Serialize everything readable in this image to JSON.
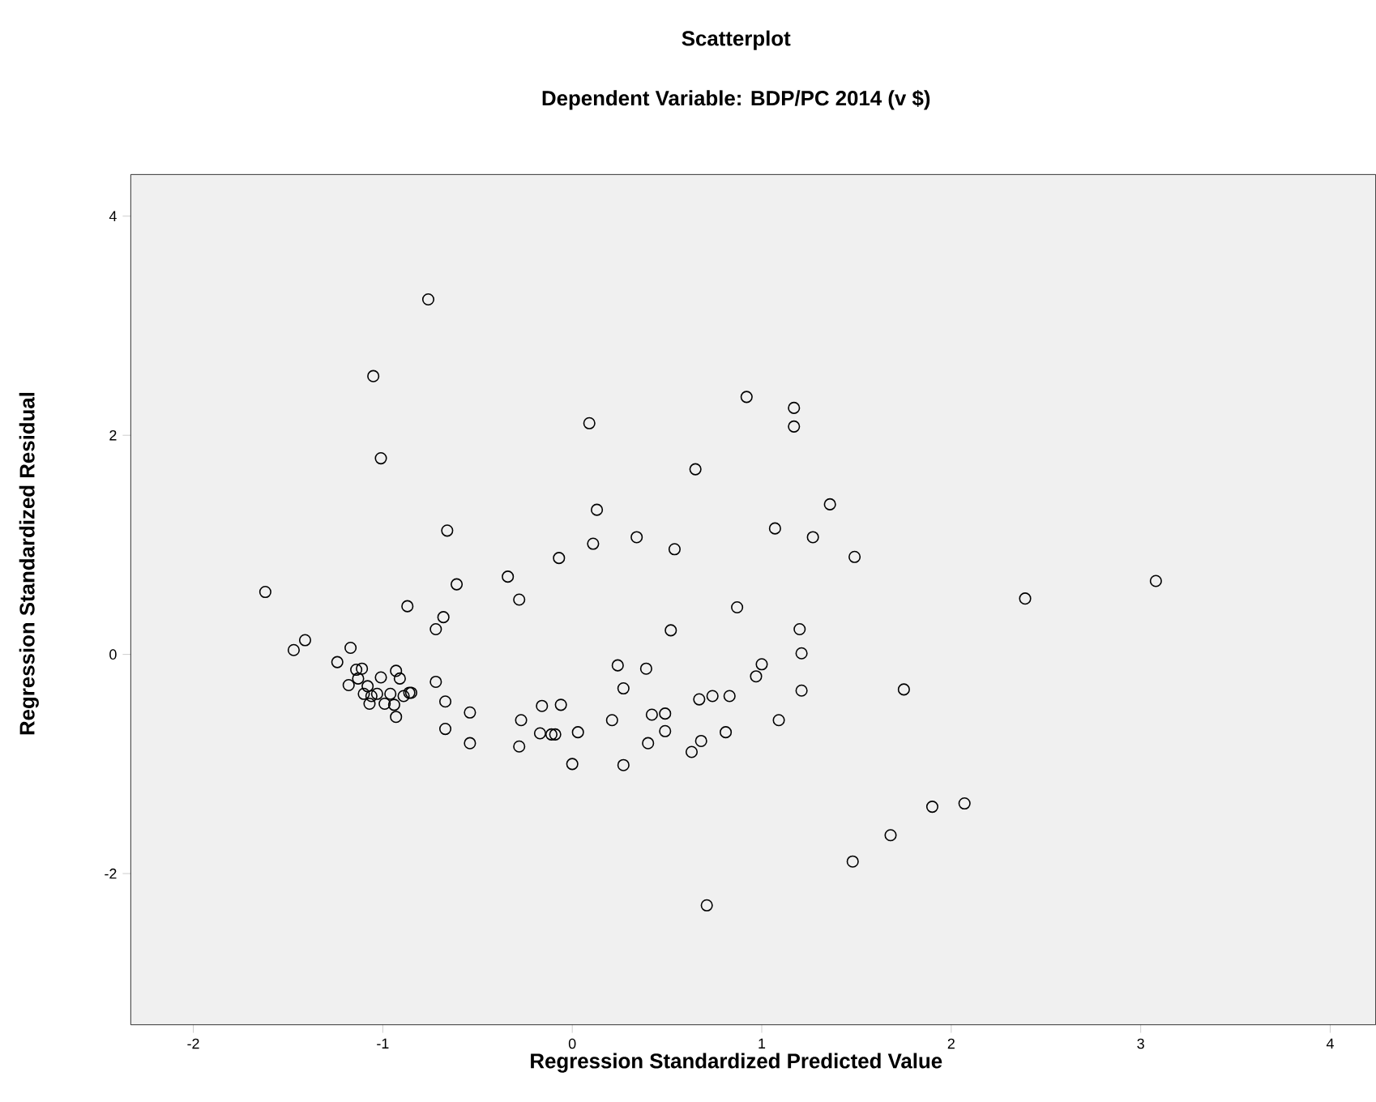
{
  "chart_data": {
    "type": "scatter",
    "title": "Scatterplot",
    "subtitle": "Dependent Variable: BDP/PC 2014 (v $)",
    "xlabel": "Regression Standardized Predicted Value",
    "ylabel": "Regression Standardized Residual",
    "xlim": [
      -2.33,
      4.24
    ],
    "ylim": [
      -3.38,
      4.38
    ],
    "xticks": [
      -2,
      -1,
      0,
      1,
      2,
      3,
      4
    ],
    "yticks": [
      -2,
      0,
      2,
      4
    ],
    "marker": "circle",
    "series": [
      {
        "color": "#000000",
        "x": [
          -0.76,
          -1.05,
          -1.01,
          0.92,
          1.17,
          1.17,
          0.09,
          0.65,
          0.13,
          1.36,
          -0.66,
          1.07,
          1.27,
          0.34,
          0.11,
          0.54,
          1.49,
          -0.07,
          -0.34,
          -0.61,
          -0.28,
          -1.62,
          -0.87,
          0.87,
          -0.68,
          -0.72,
          0.52,
          1.2,
          2.39,
          3.08,
          -1.41,
          -1.47,
          -1.17,
          1.21,
          -1.24,
          1.0,
          0.97,
          0.24,
          0.39,
          0.27,
          1.21,
          1.75,
          -0.72,
          -0.67,
          -0.54,
          -0.16,
          -0.06,
          -0.27,
          0.21,
          0.42,
          0.49,
          0.67,
          0.74,
          0.83,
          1.09,
          -0.67,
          -0.54,
          -0.28,
          -0.17,
          -0.11,
          -0.09,
          0.03,
          0.0,
          0.27,
          0.4,
          0.49,
          0.68,
          0.63,
          0.81,
          1.9,
          2.07,
          1.68,
          1.48,
          0.71,
          -1.14,
          -1.11,
          -0.93,
          -1.18,
          -1.13,
          -1.01,
          -0.91,
          -1.08,
          -1.03,
          -1.06,
          -0.96,
          -0.86,
          -0.85,
          -1.07,
          -0.99,
          -0.94,
          -0.93,
          -1.1,
          -0.89
        ],
        "values": [
          3.24,
          2.54,
          1.79,
          2.35,
          2.25,
          2.08,
          2.11,
          1.69,
          1.32,
          1.37,
          1.13,
          1.15,
          1.07,
          1.07,
          1.01,
          0.96,
          0.89,
          0.88,
          0.71,
          0.64,
          0.5,
          0.57,
          0.44,
          0.43,
          0.34,
          0.23,
          0.22,
          0.23,
          0.51,
          0.67,
          0.13,
          0.04,
          0.06,
          0.01,
          -0.07,
          -0.09,
          -0.2,
          -0.1,
          -0.13,
          -0.31,
          -0.33,
          -0.32,
          -0.25,
          -0.43,
          -0.53,
          -0.47,
          -0.46,
          -0.6,
          -0.6,
          -0.55,
          -0.54,
          -0.41,
          -0.38,
          -0.38,
          -0.6,
          -0.68,
          -0.81,
          -0.84,
          -0.72,
          -0.73,
          -0.73,
          -0.71,
          -1.0,
          -1.01,
          -0.81,
          -0.7,
          -0.79,
          -0.89,
          -0.71,
          -1.39,
          -1.36,
          -1.65,
          -1.89,
          -2.29,
          -0.14,
          -0.13,
          -0.15,
          -0.28,
          -0.22,
          -0.21,
          -0.22,
          -0.29,
          -0.36,
          -0.38,
          -0.36,
          -0.35,
          -0.35,
          -0.45,
          -0.45,
          -0.46,
          -0.57,
          -0.36,
          -0.38
        ]
      }
    ]
  }
}
